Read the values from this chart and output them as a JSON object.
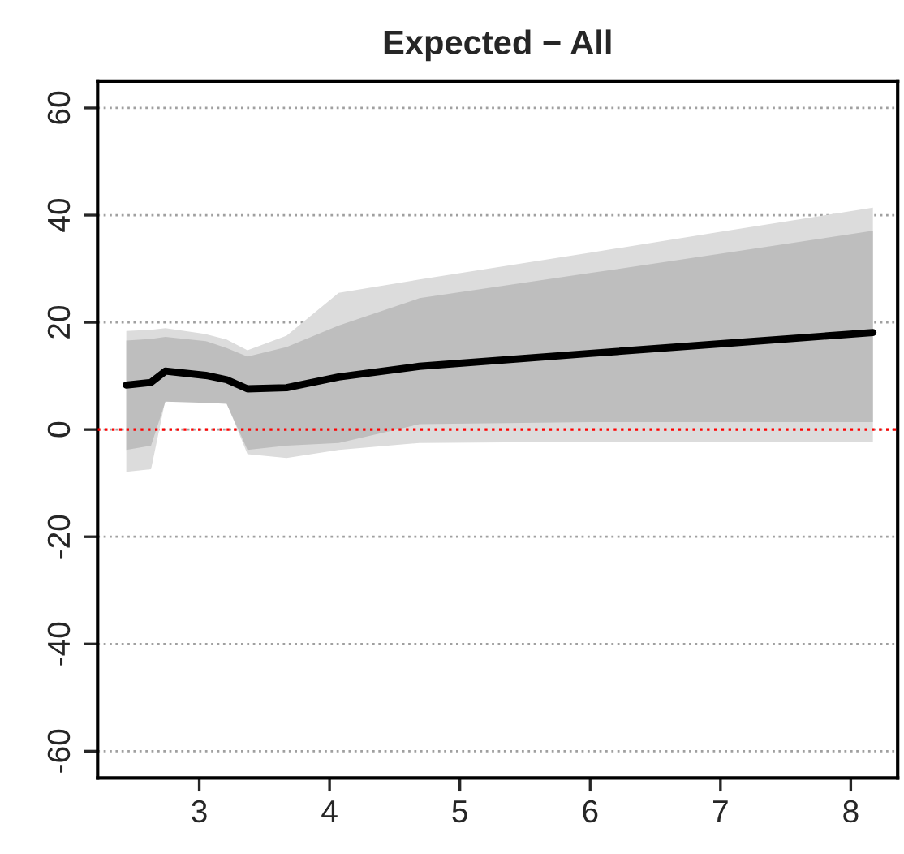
{
  "chart_data": {
    "type": "line",
    "title": "Expected − All",
    "x": [
      2.44,
      2.63,
      2.74,
      3.05,
      3.21,
      3.37,
      3.67,
      4.07,
      4.69,
      6.0,
      7.0,
      8.17
    ],
    "series": [
      {
        "type": "area",
        "color": "#dcdcdc",
        "values": [
          null,
          null,
          null,
          null,
          null,
          null,
          null,
          null,
          null,
          null,
          null,
          null
        ],
        "lower": [
          -7.9,
          -7.4,
          5.5,
          5.2,
          5.0,
          -4.6,
          -5.3,
          -3.8,
          -2.5,
          -2.3,
          -2.3,
          -2.3
        ],
        "upper": [
          18.4,
          18.6,
          18.9,
          17.8,
          16.8,
          14.8,
          17.5,
          25.5,
          28.0,
          33.0,
          36.9,
          41.4
        ]
      },
      {
        "type": "area",
        "color": "#bebebe",
        "values": [
          null,
          null,
          null,
          null,
          null,
          null,
          null,
          null,
          null,
          null,
          null,
          null
        ],
        "lower": [
          -3.8,
          -3.0,
          5.2,
          5.0,
          4.8,
          -3.8,
          -3.0,
          -2.5,
          1.0,
          1.4,
          1.4,
          1.4
        ],
        "upper": [
          16.6,
          16.9,
          17.3,
          16.5,
          15.2,
          13.6,
          15.4,
          19.4,
          24.5,
          29.2,
          32.8,
          37.1
        ]
      },
      {
        "type": "line",
        "color": "#000000",
        "values": [
          8.3,
          8.8,
          10.9,
          10.1,
          9.3,
          7.6,
          7.8,
          9.8,
          11.8,
          14.2,
          16.0,
          18.1
        ]
      }
    ],
    "xlim": [
      2.22,
      8.36
    ],
    "xticks": [
      3,
      4,
      5,
      6,
      7,
      8
    ],
    "ylim": [
      -65,
      65
    ],
    "yticks": [
      -60,
      -40,
      -20,
      0,
      20,
      40,
      60
    ],
    "ref_lines": [
      {
        "axis": "y",
        "value": 0,
        "color": "#ff0000",
        "line_style": "dotted"
      }
    ],
    "grid": "y",
    "line_style": "solid",
    "marker": "none"
  }
}
